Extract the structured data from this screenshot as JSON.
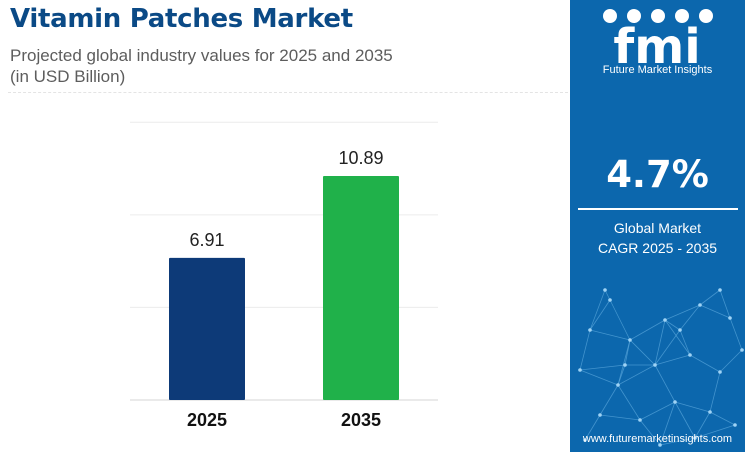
{
  "header": {
    "title": "Vitamin Patches Market",
    "subtitle_line1": "Projected global industry values for 2025 and 2035",
    "subtitle_line2": "(in USD Billion)"
  },
  "chart_data": {
    "type": "bar",
    "title": "Vitamin Patches Market",
    "categories": [
      "2025",
      "2035"
    ],
    "values": [
      6.91,
      10.89
    ],
    "value_labels": [
      "6.91",
      "10.89"
    ],
    "bar_colors": [
      "#0d3a78",
      "#20b14a"
    ],
    "xlabel": "",
    "ylabel": "",
    "ylim": [
      0,
      14
    ],
    "grid": true,
    "legend": "none"
  },
  "sidebar": {
    "brand_text": "fmi",
    "brand_name": "Future Market Insights",
    "cagr_value": "4.7%",
    "cagr_label_line1": "Global Market",
    "cagr_label_line2": "CAGR 2025 - 2035",
    "website": "www.futuremarketinsights.com",
    "background_color": "#0c67ad"
  }
}
